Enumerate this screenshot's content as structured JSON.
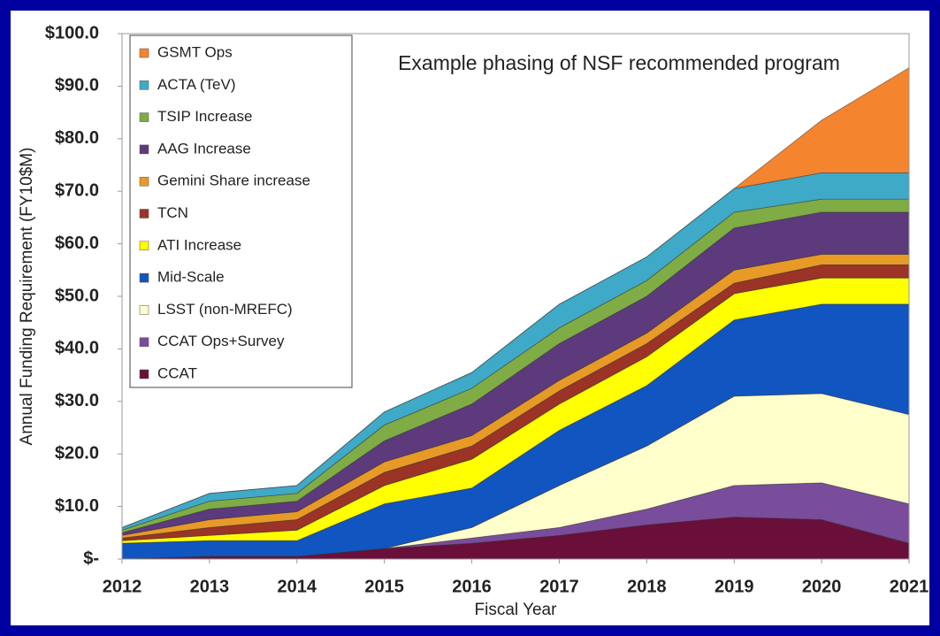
{
  "chart_data": {
    "type": "stacked_area",
    "annotation": "Example phasing of NSF recommended program",
    "x_label": "Fiscal Year",
    "y_label": "Annual Funding Requirement (FY10$M)",
    "x": [
      2012,
      2013,
      2014,
      2015,
      2016,
      2017,
      2018,
      2019,
      2020,
      2021
    ],
    "xlim": [
      2012,
      2021
    ],
    "xticks": [
      2012,
      2013,
      2014,
      2015,
      2016,
      2017,
      2018,
      2019,
      2020,
      2021
    ],
    "ylim": [
      0,
      100
    ],
    "yticks": [
      {
        "value": 0,
        "label": "$-"
      },
      {
        "value": 10,
        "label": "$10.0"
      },
      {
        "value": 20,
        "label": "$20.0"
      },
      {
        "value": 30,
        "label": "$30.0"
      },
      {
        "value": 40,
        "label": "$40.0"
      },
      {
        "value": 50,
        "label": "$50.0"
      },
      {
        "value": 60,
        "label": "$60.0"
      },
      {
        "value": 70,
        "label": "$70.0"
      },
      {
        "value": 80,
        "label": "$80.0"
      },
      {
        "value": 90,
        "label": "$90.0"
      },
      {
        "value": 100,
        "label": "$100.0"
      }
    ],
    "legend": "upper left",
    "series": [
      {
        "name": "CCAT",
        "color": "#6a0f3a",
        "values": [
          0,
          0.5,
          0.5,
          2,
          3,
          4.5,
          6.5,
          8,
          7.5,
          3
        ]
      },
      {
        "name": "CCAT Ops+Survey",
        "color": "#7a4c9c",
        "values": [
          0,
          0,
          0,
          0,
          1,
          1.5,
          3,
          6,
          7,
          7.5
        ]
      },
      {
        "name": "LSST (non-MREFC)",
        "color": "#ffffcc",
        "values": [
          0,
          0,
          0,
          0,
          2,
          8,
          12,
          17,
          17,
          17
        ]
      },
      {
        "name": "Mid-Scale",
        "color": "#1155c0",
        "values": [
          3,
          3,
          3,
          8.5,
          7.5,
          10.5,
          11.5,
          14.5,
          17,
          21
        ]
      },
      {
        "name": "ATI Increase",
        "color": "#ffff00",
        "values": [
          0.5,
          1,
          2,
          3.5,
          5.5,
          5,
          5.5,
          5,
          5,
          5
        ]
      },
      {
        "name": "TCN",
        "color": "#9b3326",
        "values": [
          0.5,
          1.5,
          2,
          2.5,
          2.5,
          2.5,
          2.5,
          2,
          2.5,
          2.5
        ]
      },
      {
        "name": "Gemini Share increase",
        "color": "#e89a26",
        "values": [
          0.5,
          1.5,
          1.5,
          2,
          2,
          2,
          2,
          2.5,
          2,
          2
        ]
      },
      {
        "name": "AAG Increase",
        "color": "#5c3a7c",
        "values": [
          0.5,
          2,
          2,
          4,
          6,
          7,
          7,
          8,
          8,
          8
        ]
      },
      {
        "name": "TSIP Increase",
        "color": "#7fac45",
        "values": [
          0.5,
          1.5,
          1.5,
          3,
          3,
          3,
          3,
          3,
          2.5,
          2.5
        ]
      },
      {
        "name": "ACTA (TeV)",
        "color": "#3fa9c8",
        "values": [
          0.5,
          1.5,
          1.5,
          2.5,
          3,
          4.5,
          4.5,
          4.5,
          5,
          5
        ]
      },
      {
        "name": "GSMT Ops",
        "color": "#f5842f",
        "values": [
          0,
          0,
          0,
          0,
          0,
          0,
          0,
          0,
          10,
          20
        ]
      }
    ]
  }
}
